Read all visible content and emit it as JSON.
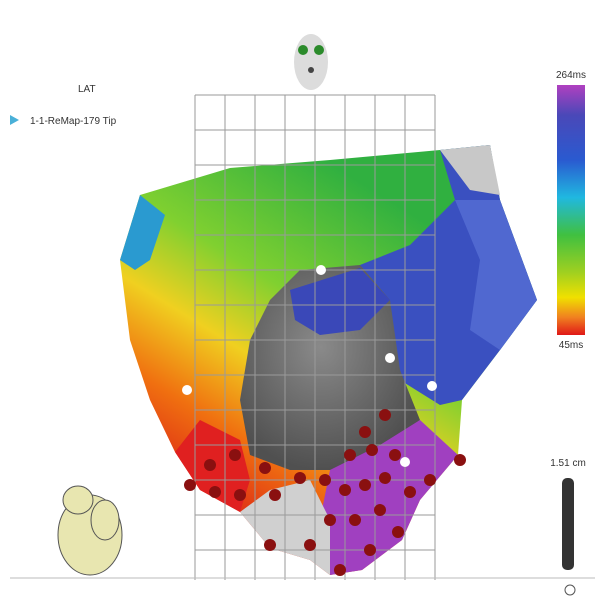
{
  "legend": {
    "title": "LAT",
    "items": [
      {
        "label": "1-1-ReMap-179 Tip"
      }
    ]
  },
  "color_scale": {
    "max_label": "264ms",
    "min_label": "45ms"
  },
  "scale_bar": {
    "label": "1.51 cm"
  }
}
